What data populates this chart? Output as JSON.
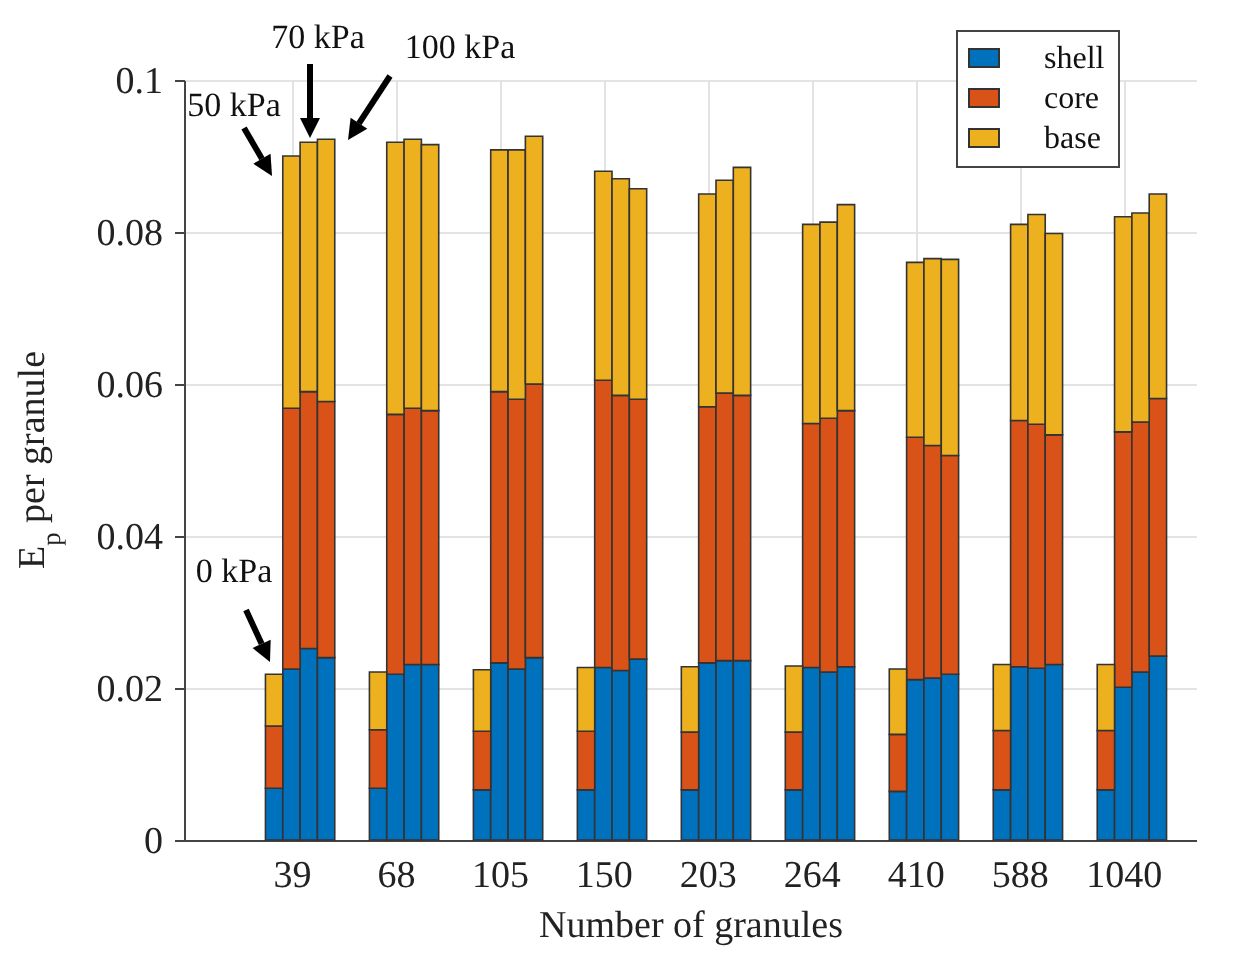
{
  "chart_data": {
    "type": "bar",
    "stacked": true,
    "xlabel": "Number of granules",
    "ylabel": "E$_{p}$ per granule",
    "categories": [
      null,
      "39",
      null,
      null,
      null,
      null,
      null,
      "68",
      null,
      null,
      null,
      null,
      null,
      "105",
      null,
      null,
      null,
      null,
      null,
      "150",
      null,
      null,
      null,
      null,
      null,
      "203",
      null,
      null,
      null,
      null,
      null,
      "264",
      null,
      null,
      null,
      null,
      null,
      "410",
      null,
      null,
      null,
      null,
      null,
      "588",
      null,
      null,
      null,
      null,
      null,
      "1040",
      null,
      null
    ],
    "series": [
      {
        "name": "shell",
        "color": "#0072bd",
        "values": [
          0.0068,
          0.0225,
          0.0252,
          0.024,
          null,
          null,
          0.0068,
          0.0218,
          0.0231,
          0.0231,
          null,
          null,
          0.0066,
          0.0233,
          0.0225,
          0.024,
          null,
          null,
          0.0066,
          0.0227,
          0.0223,
          0.0238,
          null,
          null,
          0.0066,
          0.0233,
          0.0236,
          0.0236,
          null,
          null,
          0.0066,
          0.0227,
          0.0221,
          0.0228,
          null,
          null,
          0.0064,
          0.0211,
          0.0213,
          0.0218,
          null,
          null,
          0.0066,
          0.0228,
          0.0226,
          0.0231,
          null,
          null,
          0.0066,
          0.0201,
          0.0221,
          0.0242
        ]
      },
      {
        "name": "core",
        "color": "#d95319",
        "values": [
          0.0082,
          0.0343,
          0.0338,
          0.0337,
          null,
          null,
          0.0077,
          0.0342,
          0.0337,
          0.0334,
          null,
          null,
          0.0077,
          0.0357,
          0.0355,
          0.036,
          null,
          null,
          0.0077,
          0.0378,
          0.0362,
          0.0342,
          null,
          null,
          0.0076,
          0.0337,
          0.0352,
          0.0349,
          null,
          null,
          0.0076,
          0.0321,
          0.0334,
          0.0337,
          null,
          null,
          0.0075,
          0.0319,
          0.0306,
          0.0288,
          null,
          null,
          0.0078,
          0.0324,
          0.0321,
          0.0302,
          null,
          null,
          0.0078,
          0.0336,
          0.0329,
          0.0339
        ]
      },
      {
        "name": "base",
        "color": "#edb120",
        "values": [
          0.0068,
          0.0332,
          0.0328,
          0.0345,
          null,
          null,
          0.0076,
          0.0358,
          0.0354,
          0.035,
          null,
          null,
          0.0081,
          0.0318,
          0.0328,
          0.0326,
          null,
          null,
          0.0084,
          0.0275,
          0.0285,
          0.0277,
          null,
          null,
          0.0086,
          0.028,
          0.028,
          0.03,
          null,
          null,
          0.0087,
          0.0262,
          0.0258,
          0.0271,
          null,
          null,
          0.0086,
          0.023,
          0.0246,
          0.0258,
          null,
          null,
          0.0087,
          0.0258,
          0.0276,
          0.0265,
          null,
          null,
          0.0087,
          0.0283,
          0.0275,
          0.0269
        ]
      }
    ],
    "ylim": [
      0,
      0.1
    ],
    "yticks": [
      0,
      0.02,
      0.04,
      0.06,
      0.08,
      0.1
    ],
    "grid": true,
    "legend": "top right",
    "annotations": [
      "0 kPa",
      "50 kPa",
      "70 kPa",
      "100 kPa"
    ]
  }
}
